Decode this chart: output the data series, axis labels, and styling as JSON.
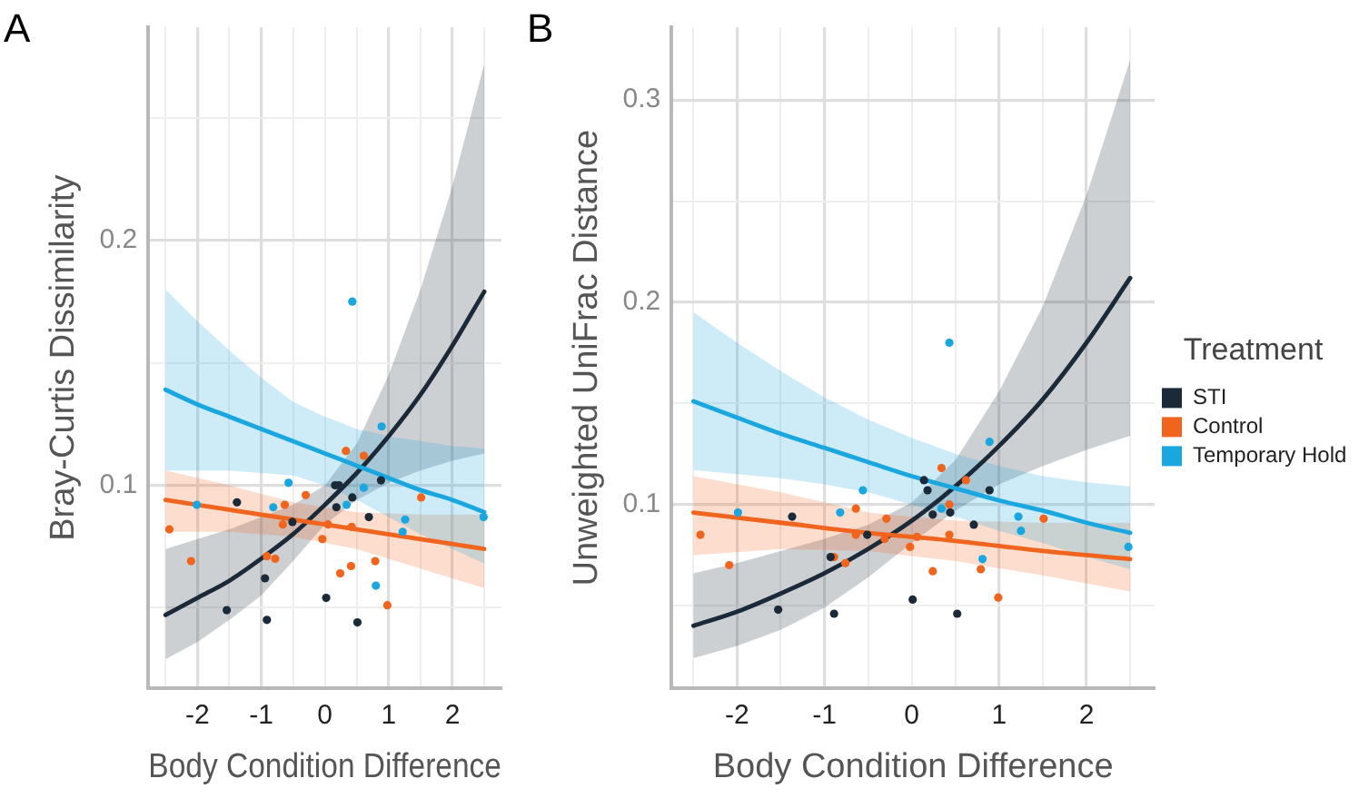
{
  "chart_data": [
    {
      "type": "scatter",
      "title": "A",
      "xlabel": "Body Condition Difference",
      "ylabel": "Bray-Curtis Dissimilarity",
      "xlim": [
        -2.77,
        2.77
      ],
      "ylim": [
        0.017,
        0.287
      ],
      "xticks": [
        {
          "value": -2.5,
          "label": null
        },
        -2,
        {
          "value": -1.5,
          "label": null
        },
        -1,
        {
          "value": -0.5,
          "label": null
        },
        0,
        {
          "value": 0.5,
          "label": null
        },
        1,
        {
          "value": 1.5,
          "label": null
        },
        2,
        {
          "value": 2.5,
          "label": null
        }
      ],
      "yticks": [
        {
          "value": 0.05,
          "label": null
        },
        0.1,
        {
          "value": 0.15,
          "label": null
        },
        0.2,
        {
          "value": 0.25,
          "label": null
        }
      ],
      "grid": true,
      "marker": "circle",
      "series": [
        {
          "type": "line",
          "marker": "none",
          "color": "#1aa7e0",
          "x": [
            -2.5,
            -2,
            -1.5,
            -1,
            -0.5,
            0,
            0.5,
            1,
            1.5,
            2,
            2.5
          ],
          "values": [
            0.139,
            0.133,
            0.128,
            0.123,
            0.118,
            0.113,
            0.108,
            0.103,
            0.098,
            0.094,
            0.089
          ],
          "lower": [
            0.106,
            0.106,
            0.106,
            0.105,
            0.104,
            0.1,
            0.094,
            0.087,
            0.08,
            0.074,
            0.068
          ],
          "upper": [
            0.18,
            0.167,
            0.155,
            0.144,
            0.134,
            0.128,
            0.123,
            0.12,
            0.118,
            0.116,
            0.115
          ]
        },
        {
          "type": "line",
          "marker": "none",
          "color": "#f0641e",
          "x": [
            -2.5,
            -1.5,
            -0.5,
            0.5,
            1.5,
            2.5
          ],
          "values": [
            0.094,
            0.09,
            0.086,
            0.082,
            0.078,
            0.074
          ],
          "lower": [
            0.081,
            0.081,
            0.079,
            0.074,
            0.066,
            0.058
          ],
          "upper": [
            0.106,
            0.1,
            0.093,
            0.089,
            0.088,
            0.088
          ]
        },
        {
          "type": "line",
          "marker": "none",
          "color": "#1b2a38",
          "x": [
            -2.5,
            -2,
            -1.5,
            -1,
            -0.5,
            0,
            0.5,
            1,
            1.5,
            2,
            2.5
          ],
          "values": [
            0.047,
            0.054,
            0.061,
            0.07,
            0.08,
            0.092,
            0.105,
            0.12,
            0.137,
            0.157,
            0.179
          ],
          "lower": [
            0.029,
            0.036,
            0.045,
            0.055,
            0.069,
            0.084,
            0.094,
            0.101,
            0.106,
            0.11,
            0.113
          ],
          "upper": [
            0.074,
            0.078,
            0.082,
            0.087,
            0.092,
            0.1,
            0.117,
            0.145,
            0.18,
            0.222,
            0.272
          ]
        },
        {
          "color": "#1b2a38",
          "x": [
            -1.38,
            -1.54,
            -0.94,
            -0.91,
            -0.51,
            0.02,
            0.16,
            0.22,
            0.18,
            0.43,
            0.51,
            0.69,
            0.88
          ],
          "values": [
            0.093,
            0.049,
            0.062,
            0.045,
            0.085,
            0.054,
            0.1,
            0.1,
            0.091,
            0.095,
            0.044,
            0.087,
            0.102
          ]
        },
        {
          "color": "#f0641e",
          "x": [
            -2.44,
            -2.1,
            -0.91,
            -0.78,
            -0.66,
            -0.63,
            -0.3,
            -0.04,
            0.05,
            0.24,
            0.33,
            0.41,
            0.42,
            0.61,
            0.79,
            0.98,
            1.51
          ],
          "values": [
            0.082,
            0.069,
            0.071,
            0.07,
            0.084,
            0.092,
            0.096,
            0.078,
            0.084,
            0.064,
            0.114,
            0.067,
            0.083,
            0.112,
            0.069,
            0.051,
            0.095
          ]
        },
        {
          "color": "#1aa7e0",
          "x": [
            0.43,
            0.89,
            0.61,
            -0.57,
            -0.81,
            0.34,
            1.26,
            1.22,
            0.8,
            2.49,
            -2.01
          ],
          "values": [
            0.175,
            0.124,
            0.099,
            0.101,
            0.091,
            0.092,
            0.086,
            0.081,
            0.059,
            0.087,
            0.092
          ]
        }
      ]
    },
    {
      "type": "scatter",
      "title": "B",
      "xlabel": "Body Condition Difference",
      "ylabel": "Unweighted UniFrac Distance",
      "xlim": [
        -2.75,
        2.78
      ],
      "ylim": [
        0.009,
        0.336
      ],
      "xticks": [
        {
          "value": -2.5,
          "label": null
        },
        -2,
        {
          "value": -1.5,
          "label": null
        },
        -1,
        {
          "value": -0.5,
          "label": null
        },
        0,
        {
          "value": 0.5,
          "label": null
        },
        1,
        {
          "value": 1.5,
          "label": null
        },
        2,
        {
          "value": 2.5,
          "label": null
        }
      ],
      "yticks": [
        {
          "value": 0.05,
          "label": null
        },
        0.1,
        {
          "value": 0.15,
          "label": null
        },
        0.2,
        {
          "value": 0.25,
          "label": null
        },
        0.3
      ],
      "grid": true,
      "marker": "circle",
      "legend": "right",
      "legend_title": "Treatment",
      "series": [
        {
          "type": "line",
          "marker": "none",
          "color": "#1aa7e0",
          "x": [
            -2.5,
            -2,
            -1.5,
            -1,
            -0.5,
            0,
            0.5,
            1,
            1.5,
            2,
            2.5
          ],
          "values": [
            0.151,
            0.143,
            0.135,
            0.128,
            0.121,
            0.114,
            0.108,
            0.102,
            0.097,
            0.091,
            0.086
          ],
          "lower": [
            0.117,
            0.115,
            0.113,
            0.11,
            0.106,
            0.1,
            0.094,
            0.087,
            0.081,
            0.074,
            0.068
          ],
          "upper": [
            0.195,
            0.18,
            0.166,
            0.153,
            0.142,
            0.133,
            0.125,
            0.119,
            0.114,
            0.111,
            0.109
          ]
        },
        {
          "type": "line",
          "marker": "none",
          "color": "#f0641e",
          "x": [
            -2.5,
            -1.5,
            -0.5,
            0.5,
            1.5,
            2.5
          ],
          "values": [
            0.096,
            0.091,
            0.086,
            0.082,
            0.077,
            0.073
          ],
          "lower": [
            0.075,
            0.078,
            0.077,
            0.072,
            0.065,
            0.057
          ],
          "upper": [
            0.114,
            0.106,
            0.096,
            0.092,
            0.091,
            0.091
          ]
        },
        {
          "type": "line",
          "marker": "none",
          "color": "#1b2a38",
          "x": [
            -2.5,
            -2,
            -1.5,
            -1,
            -0.5,
            0,
            0.5,
            1,
            1.5,
            2,
            2.5
          ],
          "values": [
            0.04,
            0.047,
            0.056,
            0.066,
            0.078,
            0.092,
            0.109,
            0.129,
            0.152,
            0.18,
            0.212
          ],
          "lower": [
            0.024,
            0.03,
            0.038,
            0.049,
            0.064,
            0.081,
            0.097,
            0.11,
            0.119,
            0.127,
            0.134
          ],
          "upper": [
            0.066,
            0.071,
            0.077,
            0.083,
            0.09,
            0.101,
            0.122,
            0.156,
            0.198,
            0.253,
            0.32
          ]
        },
        {
          "name": "STI",
          "color": "#1b2a38",
          "x": [
            -1.37,
            -1.53,
            -0.93,
            -0.89,
            -0.51,
            0.01,
            0.14,
            0.18,
            0.24,
            0.44,
            0.52,
            0.71,
            0.89
          ],
          "values": [
            0.094,
            0.048,
            0.074,
            0.046,
            0.085,
            0.053,
            0.112,
            0.107,
            0.095,
            0.096,
            0.046,
            0.09,
            0.107
          ]
        },
        {
          "name": "Control",
          "color": "#f0641e",
          "x": [
            -2.42,
            -2.09,
            -0.89,
            -0.76,
            -0.64,
            -0.64,
            -0.29,
            -0.31,
            -0.02,
            0.06,
            0.24,
            0.34,
            0.43,
            0.43,
            0.62,
            0.79,
            0.99,
            1.51
          ],
          "values": [
            0.085,
            0.07,
            0.074,
            0.071,
            0.098,
            0.085,
            0.093,
            0.083,
            0.079,
            0.084,
            0.067,
            0.118,
            0.1,
            0.085,
            0.112,
            0.068,
            0.054,
            0.093
          ]
        },
        {
          "name": "Temporary Hold",
          "color": "#1aa7e0",
          "x": [
            0.43,
            0.89,
            -0.56,
            -0.82,
            -1.99,
            0.34,
            1.22,
            1.25,
            0.81,
            2.48
          ],
          "values": [
            0.18,
            0.131,
            0.107,
            0.096,
            0.096,
            0.098,
            0.094,
            0.087,
            0.073,
            0.079
          ]
        }
      ]
    }
  ]
}
